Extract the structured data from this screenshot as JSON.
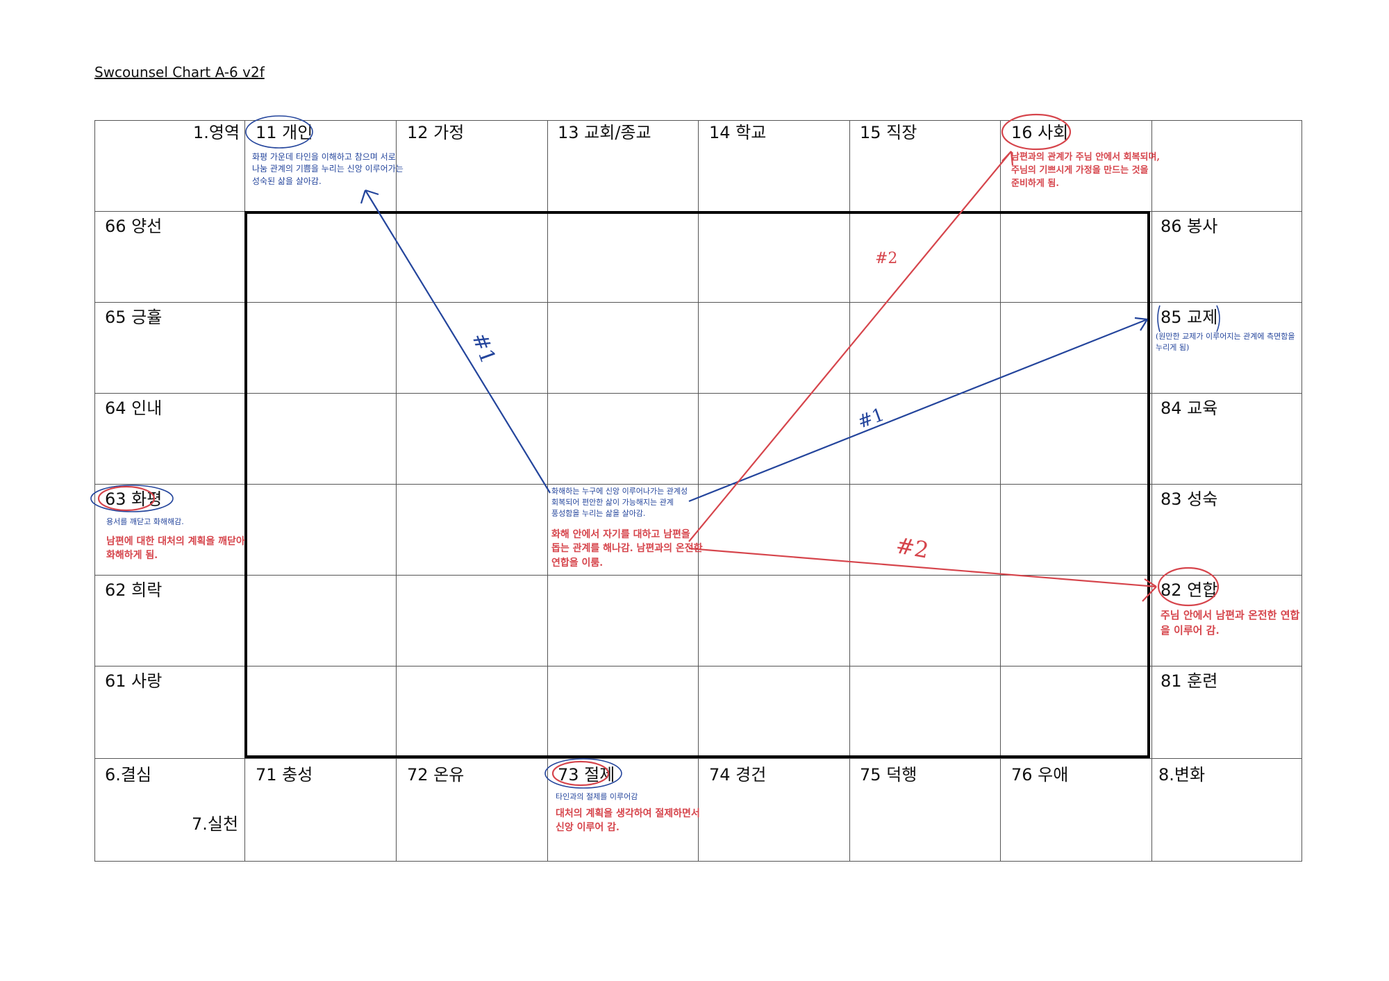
{
  "document": {
    "title": "Swcounsel Chart A-6 v2f"
  },
  "labels": {
    "corner_top": "1.영역",
    "top_row": [
      "11 개인",
      "12 가정",
      "13 교회/종교",
      "14 학교",
      "15 직장",
      "16 사회"
    ],
    "left_col": [
      "66 양선",
      "65 긍휼",
      "64 인내",
      "63 화평",
      "62 희락",
      "61 사랑"
    ],
    "right_col": [
      "86 봉사",
      "85 교제",
      "84 교육",
      "83 성숙",
      "82 연합",
      "81 훈련"
    ],
    "bottom_row": [
      "71 충성",
      "72 온유",
      "73 절제",
      "74 경건",
      "75 덕행",
      "76 우애"
    ],
    "corner_bottom_left_top": "6.결심",
    "corner_bottom_left_bottom": "7.실천",
    "corner_bottom_right": "8.변화"
  },
  "annotations": {
    "note_11": [
      "화평 가운데 타인을 이해하고 참으며 서로",
      "나눔 관계의 기쁨을 누리는 신앙 이루어가는",
      "성숙된 삶을 살아감."
    ],
    "note_16": [
      "남편과의 관계가 주님 안에서 회복되며,",
      "주님의 기쁘시게 가정을 만드는 것을",
      "준비하게 됨."
    ],
    "note_85": [
      "(원만한 교제가 이루어지는 관계에 측면함을",
      "누리게 됨)"
    ],
    "note_63_blue": "용서를 깨닫고 화해해감.",
    "note_63_red": [
      "남편에 대한 대처의 계획을 깨닫아",
      "화해하게 됨."
    ],
    "note_center_blue": [
      "화해하는 누구에 신앙 이루어나가는 관계성",
      "회복되어 편안한 삶이 가능해지는 관계",
      "풍성함을 누리는 삶을 살아감."
    ],
    "note_center_red": [
      "화해 안에서 자기를 대하고 남편을",
      "돕는 관계를 해나감. 남편과의 온전한",
      "연합을 이룸."
    ],
    "note_82": [
      "주님 안에서 남편과 온전한 연합",
      "을 이루어 감."
    ],
    "note_73_blue": "타인과의 절제를 이루어감",
    "note_73_red": [
      "대처의 계획을 생각하여 절제하면서",
      "신앙 이루어 감."
    ],
    "mark_blue_1a": "#1",
    "mark_blue_1b": "#1",
    "mark_red_2a": "#2",
    "mark_red_2b": "#2"
  },
  "colors": {
    "blue_ink": "#24459c",
    "red_ink": "#d6454c",
    "grid_line": "#555555",
    "frame": "#000000"
  }
}
